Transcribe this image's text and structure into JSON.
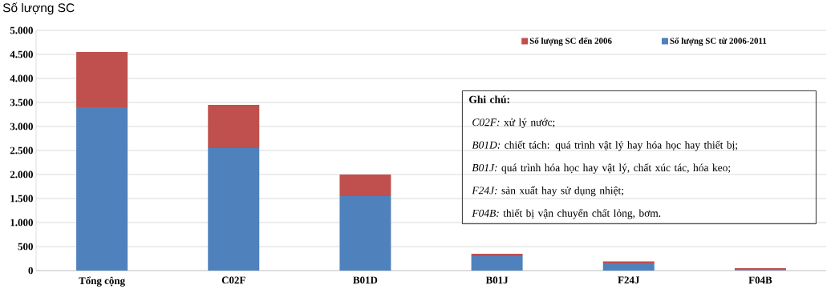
{
  "chart_data": {
    "type": "bar",
    "stacked": true,
    "ylabel": "Số lượng SC",
    "categories": [
      "Tổng cộng",
      "C02F",
      "B01D",
      "B01J",
      "F24J",
      "F04B"
    ],
    "series": [
      {
        "name": "Số lượng SC từ 2006-2011",
        "color": "#4f81bd",
        "values": [
          3400,
          2550,
          1550,
          300,
          150,
          10
        ]
      },
      {
        "name": "Số lượng SC đến 2006",
        "color": "#c0504d",
        "values": [
          1150,
          900,
          450,
          50,
          40,
          40
        ]
      }
    ],
    "ylim": [
      0,
      5000
    ],
    "yticks": [
      0,
      500,
      {
        "value": 1000,
        "label": "1.000"
      },
      {
        "value": 1500,
        "label": "1.500"
      },
      {
        "value": 2000,
        "label": "2.000"
      },
      {
        "value": 2500,
        "label": "2.500"
      },
      {
        "value": 3000,
        "label": "3.000"
      },
      {
        "value": 3500,
        "label": "3.500"
      },
      {
        "value": 4000,
        "label": "4.000"
      },
      {
        "value": 4500,
        "label": "4.500"
      },
      {
        "value": 5000,
        "label": "5.000"
      }
    ],
    "grid": "y",
    "legend": "top right",
    "annotations": [
      "Ghi chú:",
      "*C02F:* xử lý nước;",
      "*B01D:* chiết tách: quá trình vật lý hay hóa học hay thiết bị;",
      "*B01J:* quá trình hóa học hay vật lý, chất xúc tác, hóa keo;",
      "*F24J:* sản xuất hay sử dụng nhiệt;",
      "*F04B:* thiết bị vận chuyển chất lỏng, bơm."
    ]
  }
}
